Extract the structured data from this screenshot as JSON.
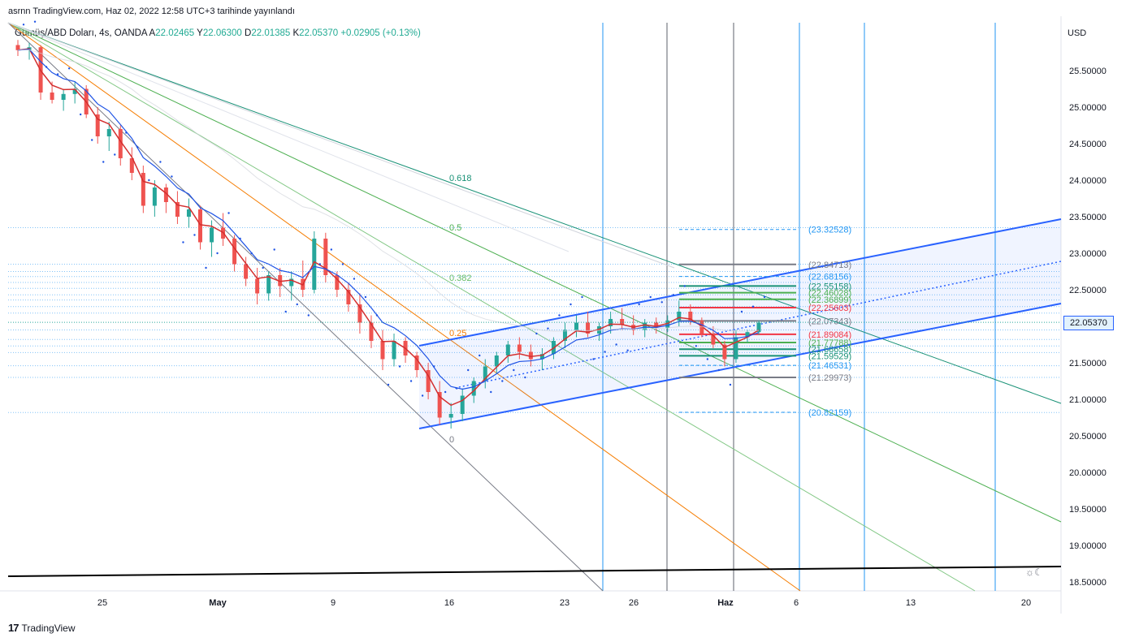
{
  "caption": "asrnn TradingView.com, Haz 02, 2022 12:58 UTC+3 tarihinde yayınlandı",
  "legend": {
    "symbol": "Gümüş/ABD Doları, 4s, OANDA",
    "o_label": "A",
    "o": "22.02465",
    "h_label": "Y",
    "h": "22.06300",
    "l_label": "D",
    "l": "22.01385",
    "c_label": "K",
    "c": "22.05370",
    "change": "+0.02905 (+0.13%)"
  },
  "footer": {
    "brand": "TradingView",
    "logo_icon": "tradingview-logo-icon"
  },
  "settings_icon": "sun-moon-icon",
  "colors": {
    "up": "#26a69a",
    "down": "#ef5350",
    "blue_line": "#2962ff",
    "ema_red": "#d32f2f",
    "ema_blue": "#1e53e5",
    "fib_orange": "#f57c00",
    "fib_green_dark": "#189176",
    "fib_green": "#4caf50",
    "fib_gray": "#787b86",
    "vline_blue": "#2196f3",
    "vline_gray": "#5d606b",
    "black_line": "#000000"
  },
  "chart_data": {
    "type": "candlestick",
    "currency": "USD",
    "y_ticks": [
      "25.50000",
      "25.00000",
      "24.50000",
      "24.00000",
      "23.50000",
      "23.00000",
      "22.50000",
      "22.00000",
      "21.50000",
      "21.00000",
      "20.50000",
      "20.00000",
      "19.50000",
      "19.00000",
      "18.50000"
    ],
    "y_tick_values": [
      25.5,
      25.0,
      24.5,
      24.0,
      23.5,
      23.0,
      22.5,
      22.0,
      21.5,
      21.0,
      20.5,
      20.0,
      19.5,
      19.0,
      18.5
    ],
    "ylim": [
      18.25,
      26.0
    ],
    "x_ticks": [
      "25",
      "May",
      "9",
      "16",
      "23",
      "26",
      "Haz",
      "6",
      "13",
      "20"
    ],
    "last_price": "22.05370",
    "fib_fan_labels": [
      "0.618",
      "0.5",
      "0.382",
      "0.25",
      "0"
    ],
    "horizontal_levels": [
      {
        "label": "(23.32528)",
        "value": 23.32528,
        "color": "#2196f3"
      },
      {
        "label": "(22.84713)",
        "value": 22.84713,
        "color": "#787b86"
      },
      {
        "label": "(22.68156)",
        "value": 22.68156,
        "color": "#2196f3"
      },
      {
        "label": "(22.55158)",
        "value": 22.55158,
        "color": "#189176"
      },
      {
        "label": "(22.46028)",
        "value": 22.46028,
        "color": "#4caf50"
      },
      {
        "label": "(22.36899)",
        "value": 22.36899,
        "color": "#4caf50"
      },
      {
        "label": "(22.25603)",
        "value": 22.25603,
        "color": "#f23645"
      },
      {
        "label": "(22.07343)",
        "value": 22.07343,
        "color": "#787b86"
      },
      {
        "label": "(21.89084)",
        "value": 21.89084,
        "color": "#f23645"
      },
      {
        "label": "(21.77788)",
        "value": 21.77788,
        "color": "#4caf50"
      },
      {
        "label": "(21.68658)",
        "value": 21.68658,
        "color": "#189176"
      },
      {
        "label": "(21.59529)",
        "value": 21.59529,
        "color": "#189176"
      },
      {
        "label": "(21.46531)",
        "value": 21.46531,
        "color": "#2196f3"
      },
      {
        "label": "(21.29973)",
        "value": 21.29973,
        "color": "#787b86"
      },
      {
        "label": "(20.82159)",
        "value": 20.82159,
        "color": "#2196f3"
      }
    ],
    "candles": [
      [
        25.85,
        25.92,
        25.7,
        25.78
      ],
      [
        25.78,
        25.88,
        25.65,
        25.82
      ],
      [
        25.82,
        25.85,
        25.1,
        25.2
      ],
      [
        25.2,
        25.35,
        25.05,
        25.1
      ],
      [
        25.1,
        25.25,
        24.95,
        25.18
      ],
      [
        25.18,
        25.35,
        25.05,
        25.25
      ],
      [
        25.25,
        25.3,
        24.85,
        24.9
      ],
      [
        24.9,
        25.0,
        24.5,
        24.6
      ],
      [
        24.6,
        24.8,
        24.4,
        24.7
      ],
      [
        24.7,
        24.75,
        24.2,
        24.3
      ],
      [
        24.3,
        24.45,
        24.0,
        24.1
      ],
      [
        24.1,
        24.2,
        23.55,
        23.65
      ],
      [
        23.65,
        24.0,
        23.5,
        23.9
      ],
      [
        23.9,
        23.95,
        23.55,
        23.7
      ],
      [
        23.7,
        23.85,
        23.4,
        23.5
      ],
      [
        23.5,
        23.75,
        23.35,
        23.6
      ],
      [
        23.6,
        23.65,
        23.05,
        23.15
      ],
      [
        23.15,
        23.45,
        22.95,
        23.35
      ],
      [
        23.35,
        23.55,
        23.1,
        23.2
      ],
      [
        23.2,
        23.25,
        22.75,
        22.85
      ],
      [
        22.85,
        22.95,
        22.55,
        22.65
      ],
      [
        22.65,
        22.8,
        22.3,
        22.45
      ],
      [
        22.45,
        22.75,
        22.35,
        22.7
      ],
      [
        22.7,
        22.8,
        22.4,
        22.55
      ],
      [
        22.55,
        22.75,
        22.35,
        22.65
      ],
      [
        22.65,
        22.9,
        22.4,
        22.5
      ],
      [
        22.5,
        23.3,
        22.45,
        23.2
      ],
      [
        23.2,
        23.28,
        22.6,
        22.7
      ],
      [
        22.7,
        22.75,
        22.4,
        22.5
      ],
      [
        22.5,
        22.6,
        22.2,
        22.3
      ],
      [
        22.3,
        22.45,
        21.9,
        22.05
      ],
      [
        22.05,
        22.15,
        21.7,
        21.8
      ],
      [
        21.8,
        21.95,
        21.4,
        21.55
      ],
      [
        21.55,
        21.9,
        21.45,
        21.8
      ],
      [
        21.8,
        21.85,
        21.5,
        21.6
      ],
      [
        21.6,
        21.65,
        21.3,
        21.4
      ],
      [
        21.4,
        21.5,
        21.0,
        21.1
      ],
      [
        21.1,
        21.25,
        20.65,
        20.75
      ],
      [
        20.75,
        20.95,
        20.6,
        20.8
      ],
      [
        20.8,
        21.15,
        20.7,
        21.05
      ],
      [
        21.05,
        21.3,
        20.95,
        21.25
      ],
      [
        21.25,
        21.55,
        21.15,
        21.45
      ],
      [
        21.45,
        21.65,
        21.35,
        21.6
      ],
      [
        21.6,
        21.8,
        21.5,
        21.75
      ],
      [
        21.75,
        21.85,
        21.55,
        21.65
      ],
      [
        21.65,
        21.75,
        21.45,
        21.55
      ],
      [
        21.55,
        21.7,
        21.4,
        21.62
      ],
      [
        21.62,
        21.85,
        21.55,
        21.8
      ],
      [
        21.8,
        22.05,
        21.7,
        21.95
      ],
      [
        21.95,
        22.15,
        21.85,
        22.05
      ],
      [
        22.05,
        22.2,
        21.85,
        21.9
      ],
      [
        21.9,
        22.05,
        21.8,
        22.0
      ],
      [
        22.0,
        22.2,
        21.9,
        22.1
      ],
      [
        22.1,
        22.25,
        21.95,
        22.02
      ],
      [
        22.02,
        22.15,
        21.88,
        21.95
      ],
      [
        21.95,
        22.1,
        21.85,
        22.05
      ],
      [
        22.05,
        22.12,
        21.9,
        21.98
      ],
      [
        21.98,
        22.15,
        21.92,
        22.08
      ],
      [
        22.08,
        22.35,
        22.0,
        22.2
      ],
      [
        22.2,
        22.3,
        22.02,
        22.08
      ],
      [
        22.08,
        22.12,
        21.85,
        21.9
      ],
      [
        21.9,
        22.0,
        21.7,
        21.75
      ],
      [
        21.75,
        21.8,
        21.45,
        21.55
      ],
      [
        21.55,
        21.95,
        21.5,
        21.85
      ],
      [
        21.85,
        21.95,
        21.78,
        21.92
      ],
      [
        21.92,
        22.08,
        21.88,
        22.05
      ]
    ]
  }
}
